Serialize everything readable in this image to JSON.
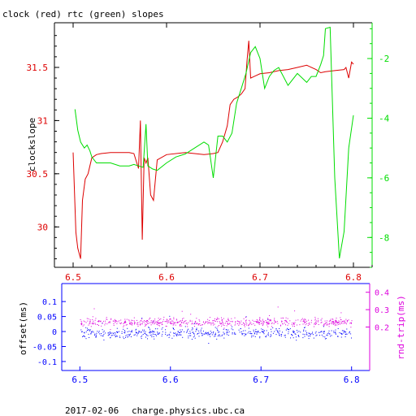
{
  "chart_data": [
    {
      "type": "line",
      "title": "clock (red) rtc (green) slopes",
      "ylabel": "clockslope",
      "xlim": [
        6.48,
        6.82
      ],
      "ylim": [
        29.62,
        31.92
      ],
      "y2lim": [
        -9.0,
        -0.8
      ],
      "x_ticks": [
        "6.5",
        "6.6",
        "6.7",
        "6.8"
      ],
      "y_ticks": [
        "30",
        "30.5",
        "31",
        "31.5"
      ],
      "y2_ticks": [
        "-8",
        "-6",
        "-4",
        "-2"
      ],
      "colors": {
        "axes": "#000000",
        "clock": "#dd0000",
        "rtc": "#00dd00"
      },
      "series": [
        {
          "id": "clock",
          "axis": "left",
          "x": [
            6.5,
            6.503,
            6.505,
            6.508,
            6.51,
            6.513,
            6.516,
            6.52,
            6.525,
            6.53,
            6.54,
            6.55,
            6.56,
            6.565,
            6.57,
            6.572,
            6.574,
            6.576,
            6.578,
            6.58,
            6.583,
            6.586,
            6.59,
            6.6,
            6.62,
            6.64,
            6.65,
            6.655,
            6.66,
            6.665,
            6.668,
            6.672,
            6.676,
            6.68,
            6.684,
            6.686,
            6.688,
            6.69,
            6.695,
            6.7,
            6.71,
            6.72,
            6.73,
            6.74,
            6.75,
            6.76,
            6.765,
            6.77,
            6.78,
            6.79,
            6.792,
            6.795,
            6.798,
            6.8
          ],
          "values": [
            30.7,
            29.95,
            29.8,
            29.7,
            30.25,
            30.45,
            30.5,
            30.65,
            30.68,
            30.69,
            30.7,
            30.7,
            30.7,
            30.69,
            30.55,
            31.0,
            29.88,
            30.65,
            30.6,
            30.65,
            30.3,
            30.25,
            30.63,
            30.68,
            30.7,
            30.68,
            30.69,
            30.7,
            30.8,
            30.95,
            31.15,
            31.2,
            31.22,
            31.25,
            31.3,
            31.55,
            31.75,
            31.4,
            31.42,
            31.44,
            31.45,
            31.47,
            31.48,
            31.5,
            31.52,
            31.48,
            31.45,
            31.46,
            31.47,
            31.48,
            31.5,
            31.4,
            31.55,
            31.53
          ]
        },
        {
          "id": "rtc",
          "axis": "right",
          "x": [
            6.502,
            6.505,
            6.508,
            6.512,
            6.515,
            6.518,
            6.52,
            6.525,
            6.53,
            6.54,
            6.55,
            6.56,
            6.565,
            6.57,
            6.575,
            6.578,
            6.58,
            6.585,
            6.59,
            6.6,
            6.61,
            6.62,
            6.63,
            6.64,
            6.645,
            6.65,
            6.655,
            6.66,
            6.665,
            6.67,
            6.675,
            6.68,
            6.685,
            6.69,
            6.695,
            6.7,
            6.705,
            6.71,
            6.715,
            6.72,
            6.73,
            6.74,
            6.75,
            6.755,
            6.76,
            6.765,
            6.768,
            6.77,
            6.775,
            6.78,
            6.785,
            6.79,
            6.795,
            6.8
          ],
          "values": [
            -3.7,
            -4.4,
            -4.8,
            -5.0,
            -4.9,
            -5.1,
            -5.3,
            -5.5,
            -5.5,
            -5.5,
            -5.6,
            -5.6,
            -5.55,
            -5.6,
            -5.65,
            -4.2,
            -5.6,
            -5.7,
            -5.75,
            -5.5,
            -5.3,
            -5.2,
            -5.0,
            -4.8,
            -4.9,
            -6.0,
            -4.6,
            -4.6,
            -4.8,
            -4.5,
            -3.5,
            -3.0,
            -2.5,
            -1.8,
            -1.6,
            -2.0,
            -3.0,
            -2.6,
            -2.4,
            -2.3,
            -2.9,
            -2.5,
            -2.8,
            -2.6,
            -2.6,
            -2.2,
            -1.9,
            -1.0,
            -0.95,
            -6.0,
            -8.7,
            -7.8,
            -5.0,
            -3.9
          ]
        }
      ]
    },
    {
      "type": "scatter",
      "xlim": [
        6.48,
        6.82
      ],
      "ylim": [
        -0.13,
        0.16
      ],
      "y2lim": [
        -0.05,
        0.45
      ],
      "ylabel": "offset(ms)",
      "y2label": "rnd-trip(ms)",
      "x_ticks": [
        "6.5",
        "6.6",
        "6.7",
        "6.8"
      ],
      "y_ticks": [
        "0.1",
        "0.05",
        "0",
        "-0.05",
        "-0.1"
      ],
      "y2_ticks": [
        "0.4",
        "0.3",
        "0.2"
      ],
      "colors": {
        "offset": "#0000ff",
        "rndtrip": "#dd00dd"
      },
      "series": [
        {
          "id": "offset",
          "axis": "left",
          "x_range": [
            6.5,
            6.8
          ],
          "center": -0.005,
          "spread": 0.025,
          "count": 520
        },
        {
          "id": "rndtrip",
          "axis": "right",
          "x_range": [
            6.5,
            6.8
          ],
          "center": 0.23,
          "spread": 0.035,
          "count": 620
        }
      ]
    }
  ],
  "footer": {
    "date": "2017-02-06",
    "host": "charge.physics.ubc.ca"
  }
}
